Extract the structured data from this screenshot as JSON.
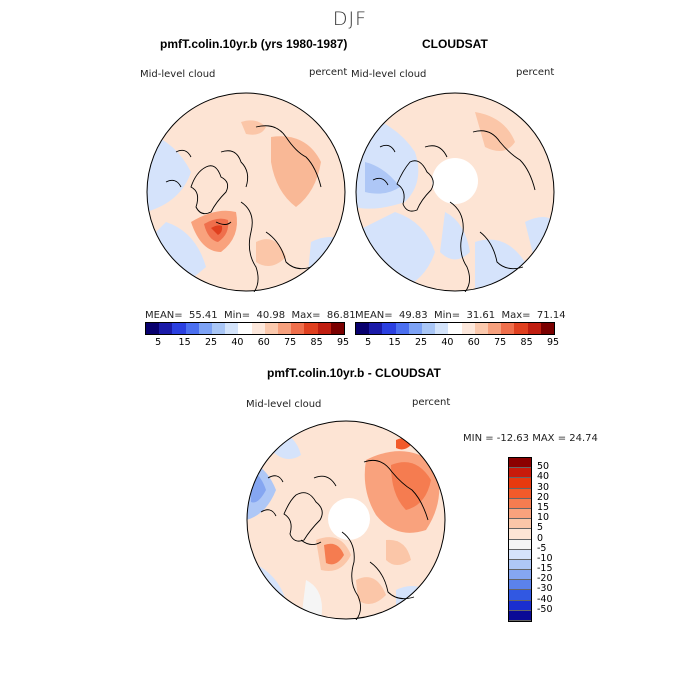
{
  "season": "DJF",
  "panel_left": {
    "title": "pmfT.colin.10yr.b (yrs 1980-1987)",
    "var_label": "Mid-level cloud",
    "units_label": "percent",
    "stats": {
      "mean_label": "MEAN=",
      "mean": "55.41",
      "min_label": "Min=",
      "min": "40.98",
      "max_label": "Max=",
      "max": "86.81"
    }
  },
  "panel_right": {
    "title": "CLOUDSAT",
    "var_label": "Mid-level cloud",
    "units_label": "percent",
    "stats": {
      "mean_label": "MEAN=",
      "mean": "49.83",
      "min_label": "Min=",
      "min": "31.61",
      "max_label": "Max=",
      "max": "71.14"
    }
  },
  "abs_colorbar": {
    "labels": [
      "5",
      "15",
      "25",
      "40",
      "60",
      "75",
      "85",
      "95"
    ],
    "colors": [
      "#08006e",
      "#1a1aa8",
      "#2a3fe0",
      "#4b6ff0",
      "#7da2f5",
      "#a9c6f6",
      "#d4e4fb",
      "#ffffff",
      "#fde8dc",
      "#fbc9ad",
      "#f6a07d",
      "#ef6f4c",
      "#e0401f",
      "#c01e10",
      "#7a0000"
    ]
  },
  "panel_diff": {
    "title": "pmfT.colin.10yr.b - CLOUDSAT",
    "var_label": "Mid-level cloud",
    "units_label": "percent",
    "minmax": "MIN = -12.63 MAX =  24.74"
  },
  "diff_colorbar": {
    "labels": [
      "50",
      "40",
      "30",
      "20",
      "15",
      "10",
      "5",
      "0",
      "-5",
      "-10",
      "-15",
      "-20",
      "-30",
      "-40",
      "-50"
    ],
    "colors": [
      "#8b0000",
      "#c81a0a",
      "#e8390f",
      "#f25a2a",
      "#f57c50",
      "#f9a27d",
      "#fbc6a8",
      "#fde4d4",
      "#f5f5f5",
      "#d5e3fb",
      "#aec7f6",
      "#85a6f1",
      "#5b82ec",
      "#3158e2",
      "#1a2ed0",
      "#0a0a96"
    ]
  }
}
